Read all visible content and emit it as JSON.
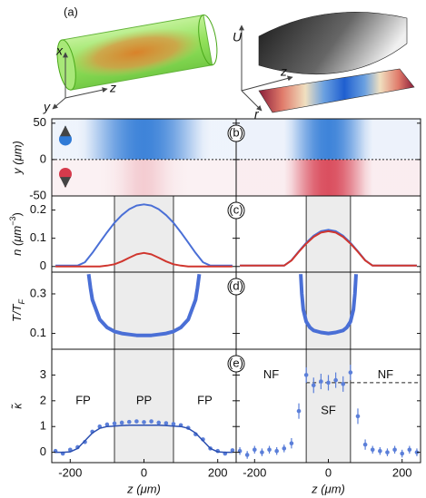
{
  "illustration": {
    "label": "(a)",
    "left_axes": [
      "x",
      "y",
      "z"
    ],
    "right_axes": [
      "U",
      "z",
      "r"
    ]
  },
  "chart_data": [
    {
      "type": "image",
      "panel_label": "(b)",
      "ylabel": "y (μm)",
      "ylim": [
        -50,
        56
      ],
      "yticks": [
        50,
        0,
        -50
      ],
      "colors": [
        "#2f7ad6",
        "#d63a4c"
      ]
    },
    {
      "type": "line",
      "panel_label": "(c)",
      "ylabel": {
        "text": "n (μm",
        "sup": "−3",
        "end": ")"
      },
      "ylim": [
        -0.02,
        0.25
      ],
      "yticks": [
        0,
        0.1,
        0.2
      ],
      "panels": [
        {
          "x": [
            -240,
            -220,
            -200,
            -180,
            -160,
            -140,
            -120,
            -100,
            -80,
            -60,
            -40,
            -20,
            0,
            20,
            40,
            60,
            80,
            100,
            120,
            140,
            160,
            180,
            200,
            220,
            240
          ],
          "series": [
            {
              "color": "#4a6fd6",
              "values": [
                0.003,
                0.003,
                0.003,
                0.003,
                0.015,
                0.048,
                0.085,
                0.121,
                0.155,
                0.182,
                0.203,
                0.216,
                0.22,
                0.216,
                0.203,
                0.182,
                0.155,
                0.121,
                0.085,
                0.048,
                0.015,
                0.003,
                0.003,
                0.003,
                0.003
              ]
            },
            {
              "color": "#d0362e",
              "values": [
                0,
                0,
                0,
                0,
                0,
                0,
                0,
                0.003,
                0.008,
                0.018,
                0.031,
                0.043,
                0.048,
                0.043,
                0.031,
                0.018,
                0.008,
                0.003,
                0,
                0,
                0,
                0,
                0,
                0,
                0
              ]
            }
          ]
        },
        {
          "x": [
            -240,
            -220,
            -200,
            -180,
            -160,
            -140,
            -120,
            -100,
            -80,
            -60,
            -40,
            -20,
            0,
            20,
            40,
            60,
            80,
            100,
            120,
            140,
            160,
            180,
            200,
            220,
            240
          ],
          "series": [
            {
              "color": "#4a6fd6",
              "values": [
                0.003,
                0.003,
                0.003,
                0.003,
                0.003,
                0.003,
                0.003,
                0.022,
                0.054,
                0.084,
                0.109,
                0.125,
                0.13,
                0.125,
                0.109,
                0.084,
                0.054,
                0.022,
                0.003,
                0.003,
                0.003,
                0.003,
                0.003,
                0.003,
                0.003
              ]
            },
            {
              "color": "#d0362e",
              "values": [
                0.003,
                0.003,
                0.003,
                0.003,
                0.003,
                0.003,
                0.003,
                0.021,
                0.052,
                0.081,
                0.105,
                0.12,
                0.125,
                0.12,
                0.105,
                0.081,
                0.052,
                0.021,
                0.003,
                0.003,
                0.003,
                0.003,
                0.003,
                0.003,
                0.003
              ]
            }
          ]
        }
      ]
    },
    {
      "type": "line",
      "panel_label": "(d)",
      "ylabel": {
        "text": "T/T",
        "sub": "F"
      },
      "ylim": [
        0.02,
        0.41
      ],
      "yticks": [
        0.1,
        0.3
      ],
      "panels": [
        {
          "x": [
            -150,
            -145,
            -140,
            -120,
            -100,
            -80,
            -60,
            -40,
            -20,
            0,
            20,
            40,
            60,
            80,
            100,
            120,
            140,
            145,
            150
          ],
          "series": [
            {
              "color": "#4a6fd6",
              "values": [
                0.4,
                0.33,
                0.27,
                0.17,
                0.13,
                0.11,
                0.1,
                0.095,
                0.09,
                0.09,
                0.09,
                0.095,
                0.1,
                0.11,
                0.13,
                0.17,
                0.27,
                0.33,
                0.4
              ]
            }
          ]
        },
        {
          "x": [
            -75,
            -72,
            -68,
            -60,
            -50,
            -40,
            -20,
            0,
            20,
            40,
            50,
            60,
            68,
            72,
            75
          ],
          "series": [
            {
              "color": "#4a6fd6",
              "values": [
                0.4,
                0.3,
                0.22,
                0.16,
                0.13,
                0.115,
                0.105,
                0.1,
                0.105,
                0.115,
                0.13,
                0.16,
                0.22,
                0.3,
                0.4
              ]
            }
          ]
        }
      ]
    },
    {
      "type": "scatter",
      "panel_label": "(e)",
      "ylabel": "κ̃",
      "ylim": [
        -0.4,
        4
      ],
      "yticks": [
        0,
        1,
        2,
        3
      ],
      "xlabel": "z (μm)",
      "xlim": [
        -250,
        250
      ],
      "xticks": [
        -200,
        0,
        200
      ],
      "panels": [
        {
          "shade": [
            -80,
            80
          ],
          "regions": [
            "FP",
            "PP",
            "FP"
          ],
          "x": [
            -240,
            -220,
            -200,
            -180,
            -160,
            -140,
            -120,
            -100,
            -80,
            -60,
            -40,
            -20,
            0,
            20,
            40,
            60,
            80,
            100,
            120,
            140,
            160,
            180,
            200,
            220,
            240
          ],
          "series": [
            {
              "color": "#5b7fd9",
              "values": [
                0.05,
                -0.05,
                0.1,
                0.2,
                0.4,
                0.8,
                1.0,
                1.08,
                1.12,
                1.15,
                1.18,
                1.2,
                1.17,
                1.2,
                1.15,
                1.13,
                1.1,
                1.05,
                0.95,
                0.7,
                0.5,
                0.15,
                0.05,
                -0.05,
                0.08
              ]
            },
            {
              "color": "#2b4fb0",
              "style": "line",
              "values": [
                0,
                0,
                0.02,
                0.15,
                0.45,
                0.75,
                0.93,
                1.0,
                1.02,
                1.04,
                1.05,
                1.05,
                1.05,
                1.05,
                1.05,
                1.04,
                1.02,
                1.0,
                0.93,
                0.75,
                0.45,
                0.15,
                0.02,
                0,
                0
              ]
            }
          ]
        },
        {
          "shade": [
            -60,
            60
          ],
          "regions": [
            "NF",
            "SF",
            "NF"
          ],
          "reference": 2.7,
          "x": [
            -240,
            -220,
            -200,
            -180,
            -160,
            -140,
            -120,
            -100,
            -80,
            -60,
            -40,
            -20,
            0,
            20,
            40,
            60,
            80,
            100,
            120,
            140,
            160,
            180,
            200,
            220,
            240
          ],
          "series": [
            {
              "color": "#5b7fd9",
              "values": [
                0.05,
                -0.1,
                0.1,
                0,
                0.1,
                0.05,
                0.15,
                0.35,
                1.6,
                3.0,
                2.6,
                2.75,
                2.7,
                2.8,
                2.65,
                3.1,
                1.4,
                0.3,
                0.1,
                0.05,
                0,
                0.1,
                -0.05,
                0.1,
                0
              ],
              "errors": [
                0.15,
                0.15,
                0.15,
                0.15,
                0.15,
                0.15,
                0.15,
                0.2,
                0.3,
                0.3,
                0.3,
                0.3,
                0.3,
                0.3,
                0.3,
                0.3,
                0.3,
                0.2,
                0.15,
                0.15,
                0.15,
                0.15,
                0.15,
                0.15,
                0.15
              ]
            }
          ]
        }
      ]
    }
  ]
}
